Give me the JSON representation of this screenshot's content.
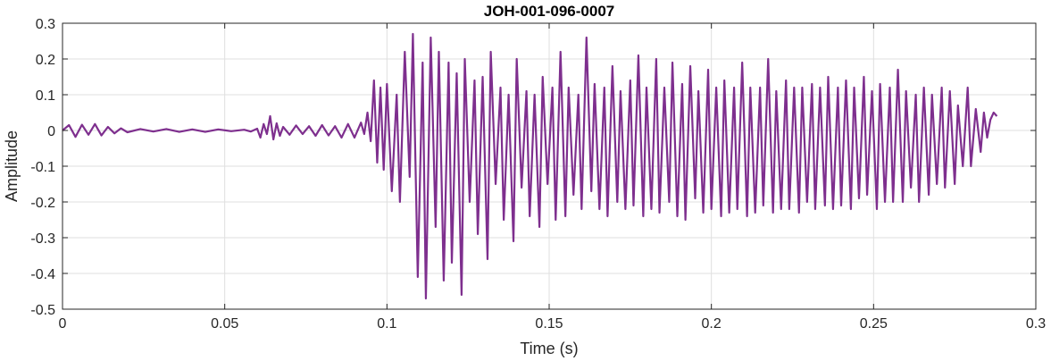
{
  "chart_data": {
    "type": "line",
    "title": "JOH-001-096-0007",
    "xlabel": "Time (s)",
    "ylabel": "Amplitude",
    "xlim": [
      0,
      0.3
    ],
    "ylim": [
      -0.5,
      0.3
    ],
    "xticks": [
      0,
      0.05,
      0.1,
      0.15,
      0.2,
      0.25,
      0.3
    ],
    "xtick_labels": [
      "0",
      "0.05",
      "0.1",
      "0.15",
      "0.2",
      "0.25",
      "0.3"
    ],
    "yticks": [
      0.3,
      0.2,
      0.1,
      0,
      -0.1,
      -0.2,
      -0.3,
      -0.4,
      -0.5
    ],
    "ytick_labels": [
      "0.3",
      "0.2",
      "0.1",
      "0",
      "-0.1",
      "-0.2",
      "-0.3",
      "-0.4",
      "-0.5"
    ],
    "grid": true,
    "line_color": "#7E2F8E",
    "series": [
      {
        "x": [
          0,
          0.002,
          0.004,
          0.006,
          0.008,
          0.01,
          0.012,
          0.014,
          0.016,
          0.018,
          0.02,
          0.024,
          0.028,
          0.032,
          0.036,
          0.04,
          0.044,
          0.048,
          0.052,
          0.056,
          0.058,
          0.06,
          0.061,
          0.062,
          0.063,
          0.064,
          0.065,
          0.066,
          0.067,
          0.068,
          0.07,
          0.072,
          0.074,
          0.076,
          0.078,
          0.08,
          0.082,
          0.084,
          0.086,
          0.088,
          0.09,
          0.092,
          0.093,
          0.094,
          0.095,
          0.096,
          0.097,
          0.098,
          0.099,
          0.1,
          0.1015,
          0.103,
          0.104,
          0.1055,
          0.107,
          0.108,
          0.1095,
          0.111,
          0.112,
          0.1135,
          0.115,
          0.116,
          0.1175,
          0.119,
          0.12,
          0.1215,
          0.123,
          0.124,
          0.1255,
          0.127,
          0.128,
          0.1295,
          0.131,
          0.132,
          0.1335,
          0.135,
          0.136,
          0.1375,
          0.139,
          0.14,
          0.1415,
          0.143,
          0.144,
          0.1455,
          0.147,
          0.148,
          0.1495,
          0.151,
          0.152,
          0.1535,
          0.155,
          0.156,
          0.1575,
          0.159,
          0.16,
          0.1615,
          0.163,
          0.164,
          0.1655,
          0.167,
          0.168,
          0.1695,
          0.171,
          0.172,
          0.1735,
          0.175,
          0.176,
          0.1775,
          0.179,
          0.18,
          0.1815,
          0.183,
          0.184,
          0.1855,
          0.187,
          0.188,
          0.1895,
          0.191,
          0.192,
          0.1935,
          0.195,
          0.196,
          0.1975,
          0.199,
          0.2,
          0.2015,
          0.203,
          0.204,
          0.2055,
          0.207,
          0.208,
          0.2095,
          0.211,
          0.212,
          0.2135,
          0.215,
          0.216,
          0.2175,
          0.219,
          0.22,
          0.2215,
          0.223,
          0.224,
          0.2255,
          0.227,
          0.228,
          0.2295,
          0.231,
          0.232,
          0.2335,
          0.235,
          0.236,
          0.2375,
          0.239,
          0.24,
          0.2415,
          0.243,
          0.244,
          0.2455,
          0.247,
          0.248,
          0.2495,
          0.251,
          0.252,
          0.2535,
          0.255,
          0.256,
          0.2575,
          0.259,
          0.26,
          0.2615,
          0.263,
          0.264,
          0.2655,
          0.267,
          0.268,
          0.2695,
          0.271,
          0.272,
          0.2735,
          0.275,
          0.276,
          0.2775,
          0.279,
          0.28,
          0.2815,
          0.283,
          0.284,
          0.285,
          0.286,
          0.287,
          0.288
        ],
        "y": [
          0,
          0.015,
          -0.018,
          0.016,
          -0.012,
          0.018,
          -0.014,
          0.01,
          -0.008,
          0.006,
          -0.005,
          0.004,
          -0.003,
          0.004,
          -0.004,
          0.003,
          -0.004,
          0.003,
          -0.002,
          0.002,
          -0.003,
          0.005,
          -0.02,
          0.018,
          -0.01,
          0.04,
          -0.025,
          0.02,
          -0.015,
          0.01,
          -0.012,
          0.014,
          -0.01,
          0.012,
          -0.015,
          0.015,
          -0.014,
          0.012,
          -0.02,
          0.018,
          -0.02,
          0.022,
          -0.01,
          0.05,
          -0.03,
          0.14,
          -0.09,
          0.12,
          -0.11,
          0.13,
          -0.17,
          0.1,
          -0.2,
          0.22,
          -0.13,
          0.27,
          -0.41,
          0.19,
          -0.47,
          0.26,
          -0.27,
          0.22,
          -0.42,
          0.19,
          -0.37,
          0.16,
          -0.46,
          0.2,
          -0.2,
          0.14,
          -0.29,
          0.15,
          -0.36,
          0.22,
          -0.15,
          0.12,
          -0.25,
          0.1,
          -0.31,
          0.2,
          -0.16,
          0.11,
          -0.24,
          0.1,
          -0.27,
          0.15,
          -0.15,
          0.12,
          -0.25,
          0.22,
          -0.24,
          0.12,
          -0.18,
          0.1,
          -0.22,
          0.26,
          -0.17,
          0.13,
          -0.22,
          0.12,
          -0.24,
          0.18,
          -0.2,
          0.11,
          -0.22,
          0.14,
          -0.21,
          0.21,
          -0.24,
          0.12,
          -0.22,
          0.2,
          -0.23,
          0.12,
          -0.2,
          0.19,
          -0.24,
          0.13,
          -0.25,
          0.18,
          -0.19,
          0.11,
          -0.23,
          0.17,
          -0.22,
          0.12,
          -0.24,
          0.14,
          -0.23,
          0.12,
          -0.22,
          0.19,
          -0.24,
          0.12,
          -0.23,
          0.12,
          -0.21,
          0.2,
          -0.23,
          0.11,
          -0.22,
          0.14,
          -0.22,
          0.12,
          -0.23,
          0.12,
          -0.2,
          0.13,
          -0.22,
          0.12,
          -0.21,
          0.15,
          -0.22,
          0.12,
          -0.21,
          0.14,
          -0.22,
          0.12,
          -0.19,
          0.15,
          -0.18,
          0.11,
          -0.22,
          0.13,
          -0.2,
          0.12,
          -0.2,
          0.17,
          -0.2,
          0.11,
          -0.16,
          0.1,
          -0.2,
          0.12,
          -0.18,
          0.1,
          -0.15,
          0.12,
          -0.16,
          0.11,
          -0.15,
          0.07,
          -0.1,
          0.12,
          -0.1,
          0.06,
          -0.06,
          0.05,
          -0.02,
          0.03,
          0.05,
          0.04
        ]
      }
    ]
  }
}
